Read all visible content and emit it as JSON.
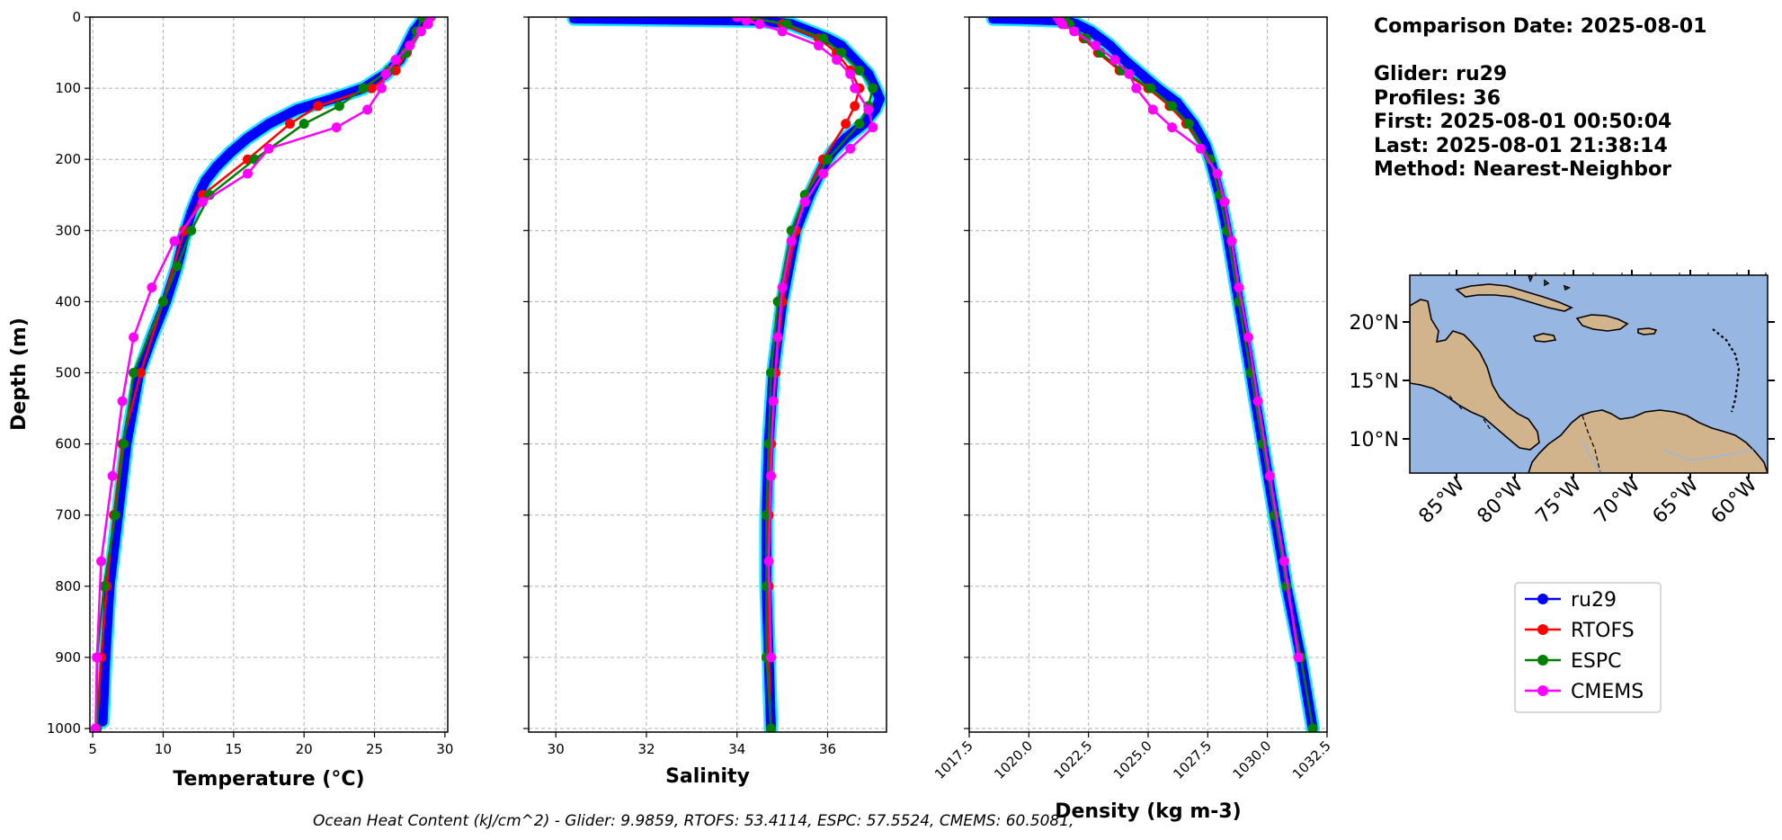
{
  "chart_data": [
    {
      "type": "line",
      "xlabel": "Temperature (°C)",
      "ylabel": "Depth (m)",
      "xlim": [
        4.8,
        30.2
      ],
      "ylim": [
        1005,
        0
      ],
      "xticks": [
        5,
        10,
        15,
        20,
        25,
        30
      ],
      "yticks": [
        0,
        100,
        200,
        300,
        400,
        500,
        600,
        700,
        800,
        900,
        1000
      ],
      "grid": true,
      "series": [
        {
          "name": "ru29",
          "color": "#0000ff",
          "band_color": "#00e5ff",
          "depth": [
            0,
            10,
            20,
            40,
            60,
            80,
            100,
            115,
            130,
            150,
            170,
            190,
            210,
            230,
            250,
            275,
            300,
            350,
            400,
            450,
            500,
            600,
            700,
            800,
            900,
            990
          ],
          "values": [
            28.5,
            28.2,
            27.8,
            27.3,
            26.8,
            25.8,
            24.2,
            22.0,
            19.5,
            17.5,
            16.0,
            14.8,
            13.8,
            13.0,
            12.5,
            12.0,
            11.6,
            11.0,
            10.2,
            9.2,
            8.3,
            7.4,
            6.8,
            6.2,
            5.9,
            5.7
          ]
        },
        {
          "name": "RTOFS",
          "color": "#ff0000",
          "depth": [
            0,
            20,
            50,
            75,
            100,
            125,
            150,
            200,
            250,
            300,
            400,
            500,
            600,
            700,
            800,
            900,
            1000
          ],
          "values": [
            28.7,
            28.3,
            27.3,
            26.5,
            24.8,
            21.0,
            19.0,
            16.0,
            12.8,
            11.5,
            10.0,
            8.4,
            7.1,
            6.5,
            6.0,
            5.6,
            5.3
          ]
        },
        {
          "name": "ESPC",
          "color": "#008000",
          "depth": [
            0,
            20,
            50,
            75,
            100,
            125,
            150,
            200,
            250,
            300,
            350,
            400,
            500,
            600,
            700,
            800,
            900,
            1000
          ],
          "values": [
            28.4,
            28.0,
            27.2,
            26.0,
            24.2,
            22.5,
            20.0,
            16.5,
            13.3,
            12.0,
            11.0,
            10.0,
            7.9,
            7.2,
            6.6,
            5.8,
            5.3,
            5.3
          ]
        },
        {
          "name": "CMEMS",
          "color": "#ff00ff",
          "depth": [
            0,
            10,
            20,
            40,
            60,
            80,
            100,
            130,
            155,
            185,
            220,
            260,
            315,
            380,
            450,
            540,
            645,
            765,
            900,
            1000
          ],
          "values": [
            29.0,
            28.8,
            28.3,
            27.5,
            26.5,
            25.8,
            25.5,
            24.5,
            22.3,
            17.5,
            16.0,
            12.8,
            10.8,
            9.2,
            7.9,
            7.1,
            6.4,
            5.6,
            5.3,
            5.2
          ]
        }
      ]
    },
    {
      "type": "line",
      "xlabel": "Salinity",
      "ylabel": "",
      "xlim": [
        29.4,
        37.3
      ],
      "ylim": [
        1005,
        0
      ],
      "xticks": [
        30,
        32,
        34,
        36
      ],
      "yticks": [
        0,
        100,
        200,
        300,
        400,
        500,
        600,
        700,
        800,
        900,
        1000
      ],
      "grid": true,
      "series": [
        {
          "name": "ru29",
          "color": "#0000ff",
          "band_color": "#00e5ff",
          "depth": [
            2,
            3,
            5,
            10,
            20,
            30,
            40,
            60,
            80,
            100,
            115,
            130,
            150,
            170,
            190,
            210,
            230,
            250,
            300,
            400,
            500,
            600,
            700,
            800,
            900,
            1000
          ],
          "values": [
            30.4,
            31.8,
            34.5,
            35.2,
            35.6,
            36.0,
            36.3,
            36.6,
            36.9,
            37.05,
            37.15,
            37.05,
            36.8,
            36.4,
            36.1,
            35.9,
            35.75,
            35.6,
            35.3,
            35.0,
            34.8,
            34.7,
            34.65,
            34.65,
            34.7,
            34.75
          ]
        },
        {
          "name": "RTOFS",
          "color": "#ff0000",
          "depth": [
            0,
            10,
            30,
            50,
            75,
            100,
            125,
            150,
            200,
            250,
            300,
            400,
            500,
            600,
            700,
            800,
            900,
            1000
          ],
          "values": [
            34.3,
            35.0,
            35.8,
            36.2,
            36.5,
            36.7,
            36.6,
            36.4,
            35.9,
            35.5,
            35.3,
            35.0,
            34.85,
            34.75,
            34.7,
            34.7,
            34.7,
            34.75
          ]
        },
        {
          "name": "ESPC",
          "color": "#008000",
          "depth": [
            0,
            10,
            30,
            50,
            75,
            100,
            125,
            150,
            200,
            250,
            300,
            400,
            500,
            600,
            700,
            800,
            900,
            1000
          ],
          "values": [
            34.2,
            35.1,
            35.9,
            36.3,
            36.7,
            37.0,
            36.9,
            36.7,
            36.0,
            35.5,
            35.2,
            34.9,
            34.75,
            34.7,
            34.65,
            34.65,
            34.65,
            34.75
          ]
        },
        {
          "name": "CMEMS",
          "color": "#ff00ff",
          "depth": [
            0,
            5,
            10,
            20,
            40,
            60,
            80,
            100,
            130,
            155,
            185,
            220,
            260,
            315,
            380,
            450,
            540,
            645,
            765,
            900
          ],
          "values": [
            34.0,
            34.2,
            34.5,
            35.0,
            35.8,
            36.2,
            36.5,
            36.6,
            36.9,
            37.0,
            36.5,
            35.9,
            35.5,
            35.2,
            35.0,
            34.9,
            34.8,
            34.75,
            34.7,
            34.75
          ]
        }
      ]
    },
    {
      "type": "line",
      "xlabel": "Density (kg m-3)",
      "ylabel": "",
      "xlim": [
        1017.5,
        1032.5
      ],
      "ylim": [
        1005,
        0
      ],
      "xticks": [
        1017.5,
        1020.0,
        1022.5,
        1025.0,
        1027.5,
        1030.0,
        1032.5
      ],
      "xtick_labels": [
        "1017.5",
        "1020.0",
        "1022.5",
        "1025.0",
        "1027.5",
        "1030.0",
        "1032.5"
      ],
      "yticks": [
        0,
        100,
        200,
        300,
        400,
        500,
        600,
        700,
        800,
        900,
        1000
      ],
      "grid": true,
      "series": [
        {
          "name": "ru29",
          "color": "#0000ff",
          "band_color": "#00e5ff",
          "depth": [
            2,
            3,
            5,
            10,
            20,
            30,
            40,
            60,
            80,
            100,
            120,
            150,
            180,
            200,
            250,
            300,
            400,
            500,
            600,
            700,
            800,
            900,
            1000
          ],
          "values": [
            1018.5,
            1019.8,
            1021.5,
            1022.0,
            1022.6,
            1023.0,
            1023.4,
            1024.0,
            1024.7,
            1025.4,
            1026.2,
            1026.9,
            1027.4,
            1027.6,
            1028.0,
            1028.3,
            1028.8,
            1029.3,
            1029.8,
            1030.3,
            1030.8,
            1031.4,
            1031.9
          ]
        },
        {
          "name": "RTOFS",
          "color": "#ff0000",
          "depth": [
            0,
            10,
            30,
            50,
            75,
            100,
            125,
            150,
            200,
            250,
            300,
            400,
            500,
            600,
            700,
            800,
            900,
            1000
          ],
          "values": [
            1021.3,
            1021.5,
            1022.3,
            1022.9,
            1023.8,
            1025.0,
            1025.9,
            1026.6,
            1027.6,
            1028.0,
            1028.3,
            1028.8,
            1029.3,
            1029.8,
            1030.3,
            1030.8,
            1031.4,
            1031.9
          ]
        },
        {
          "name": "ESPC",
          "color": "#008000",
          "depth": [
            0,
            10,
            30,
            50,
            75,
            100,
            125,
            150,
            200,
            250,
            300,
            400,
            500,
            600,
            700,
            800,
            900,
            1000
          ],
          "values": [
            1021.5,
            1021.7,
            1022.4,
            1023.0,
            1023.9,
            1025.1,
            1026.0,
            1026.7,
            1027.6,
            1028.0,
            1028.3,
            1028.8,
            1029.3,
            1029.8,
            1030.3,
            1030.8,
            1031.4,
            1031.9
          ]
        },
        {
          "name": "CMEMS",
          "color": "#ff00ff",
          "depth": [
            0,
            5,
            10,
            20,
            40,
            60,
            80,
            100,
            130,
            155,
            185,
            220,
            260,
            315,
            380,
            450,
            540,
            645,
            765,
            900
          ],
          "values": [
            1021.2,
            1021.3,
            1021.4,
            1021.9,
            1022.8,
            1023.6,
            1024.2,
            1024.5,
            1025.2,
            1026.0,
            1027.2,
            1027.9,
            1028.2,
            1028.5,
            1028.8,
            1029.2,
            1029.6,
            1030.1,
            1030.7,
            1031.3
          ]
        }
      ]
    }
  ],
  "info": {
    "comparison_date": "Comparison Date: 2025-08-01",
    "glider": "Glider: ru29",
    "profiles": "Profiles: 36",
    "first": "First: 2025-08-01 00:50:04",
    "last": "Last: 2025-08-01 21:38:14",
    "method": "Method: Nearest-Neighbor"
  },
  "map": {
    "lat_ticks": [
      "20°N",
      "15°N",
      "10°N"
    ],
    "lon_ticks": [
      "85°W",
      "80°W",
      "75°W",
      "70°W",
      "65°W",
      "60°W"
    ],
    "ocean_color": "#97b6e1",
    "land_color": "#d2b48c"
  },
  "legend": {
    "entries": [
      {
        "label": "ru29",
        "color": "#0000ff"
      },
      {
        "label": "RTOFS",
        "color": "#ff0000"
      },
      {
        "label": "ESPC",
        "color": "#008000"
      },
      {
        "label": "CMEMS",
        "color": "#ff00ff"
      }
    ]
  },
  "footer": {
    "text": "Ocean Heat Content (kJ/cm^2) - Glider: 9.9859,  RTOFS: 53.4114,  ESPC: 57.5524,  CMEMS: 60.5081,"
  }
}
